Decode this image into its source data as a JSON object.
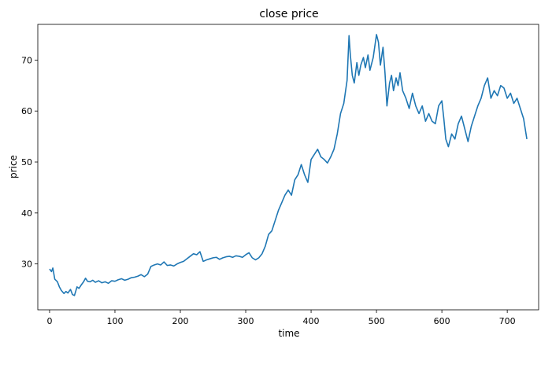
{
  "chart_data": {
    "type": "line",
    "title": "close price",
    "xlabel": "time",
    "ylabel": "price",
    "xlim": [
      -18,
      748
    ],
    "ylim": [
      21,
      77
    ],
    "xticks": [
      0,
      100,
      200,
      300,
      400,
      500,
      600,
      700
    ],
    "yticks": [
      30,
      40,
      50,
      60,
      70
    ],
    "grid": false,
    "line_color": "#1f77b4",
    "series": [
      {
        "x": [
          0,
          3,
          5,
          8,
          12,
          15,
          18,
          22,
          25,
          28,
          32,
          35,
          38,
          42,
          45,
          48,
          52,
          55,
          58,
          62,
          66,
          70,
          75,
          80,
          85,
          90,
          95,
          100,
          105,
          110,
          115,
          120,
          125,
          130,
          135,
          140,
          145,
          150,
          155,
          160,
          165,
          170,
          175,
          180,
          185,
          190,
          195,
          200,
          205,
          210,
          215,
          220,
          225,
          230,
          235,
          240,
          245,
          250,
          255,
          260,
          265,
          270,
          275,
          280,
          285,
          290,
          295,
          300,
          305,
          310,
          315,
          320,
          325,
          330,
          335,
          340,
          345,
          350,
          355,
          360,
          365,
          370,
          375,
          380,
          385,
          390,
          395,
          400,
          405,
          410,
          415,
          420,
          425,
          430,
          435,
          440,
          445,
          450,
          455,
          458,
          460,
          463,
          466,
          470,
          473,
          476,
          480,
          483,
          487,
          490,
          495,
          500,
          503,
          506,
          510,
          513,
          516,
          520,
          523,
          526,
          530,
          533,
          536,
          540,
          545,
          550,
          555,
          560,
          565,
          570,
          575,
          580,
          585,
          590,
          595,
          600,
          603,
          606,
          610,
          615,
          620,
          625,
          630,
          635,
          640,
          645,
          650,
          655,
          660,
          665,
          670,
          675,
          680,
          685,
          690,
          695,
          700,
          705,
          710,
          715,
          720,
          725,
          730
        ],
        "y": [
          29.0,
          28.5,
          29.2,
          27.0,
          26.5,
          25.5,
          24.8,
          24.2,
          24.6,
          24.3,
          25.0,
          24.0,
          23.8,
          25.5,
          25.2,
          25.8,
          26.5,
          27.2,
          26.6,
          26.5,
          26.8,
          26.4,
          26.7,
          26.3,
          26.5,
          26.2,
          26.7,
          26.6,
          26.9,
          27.1,
          26.8,
          27.0,
          27.3,
          27.4,
          27.6,
          27.9,
          27.5,
          28.0,
          29.5,
          29.8,
          30.0,
          29.8,
          30.4,
          29.7,
          29.8,
          29.6,
          30.0,
          30.3,
          30.5,
          31.0,
          31.5,
          32.0,
          31.8,
          32.4,
          30.5,
          30.8,
          31.0,
          31.2,
          31.3,
          30.9,
          31.2,
          31.4,
          31.5,
          31.3,
          31.6,
          31.5,
          31.3,
          31.8,
          32.2,
          31.2,
          30.8,
          31.2,
          32.0,
          33.5,
          35.8,
          36.5,
          38.5,
          40.5,
          42.0,
          43.5,
          44.5,
          43.5,
          46.5,
          47.5,
          49.5,
          47.5,
          46.0,
          50.5,
          51.5,
          52.5,
          51.0,
          50.5,
          49.8,
          51.0,
          52.5,
          55.5,
          59.5,
          61.5,
          66.0,
          74.8,
          71.0,
          67.0,
          65.5,
          69.5,
          67.0,
          69.0,
          70.5,
          68.5,
          71.0,
          68.0,
          70.5,
          75.0,
          73.5,
          69.0,
          72.5,
          67.5,
          61.0,
          65.5,
          67.0,
          64.0,
          66.5,
          65.0,
          67.5,
          64.0,
          62.5,
          60.5,
          63.5,
          61.0,
          59.5,
          61.0,
          58.0,
          59.5,
          58.0,
          57.5,
          61.0,
          62.0,
          58.5,
          54.5,
          53.0,
          55.5,
          54.5,
          57.5,
          59.0,
          56.5,
          54.0,
          57.0,
          59.0,
          61.0,
          62.5,
          65.0,
          66.5,
          62.5,
          64.0,
          63.0,
          65.0,
          64.5,
          62.5,
          63.5,
          61.5,
          62.5,
          60.5,
          58.5,
          54.5
        ]
      }
    ]
  }
}
